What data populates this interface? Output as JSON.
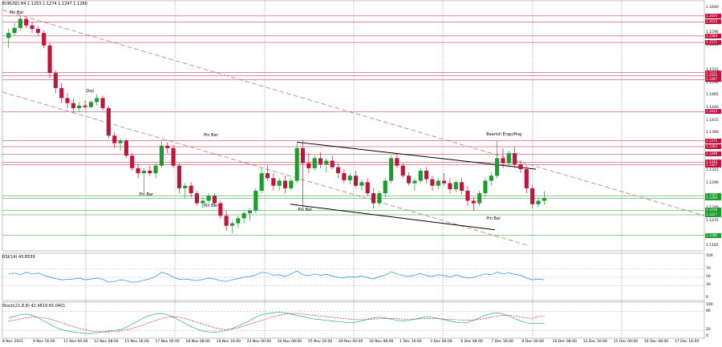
{
  "header": {
    "symbol_info": "EURUSD,H4  1.1253 1.1274 1.1247 1.1260"
  },
  "price_axis": {
    "ticks": [
      "1.1640",
      "1.1590",
      "1.1565",
      "1.1515",
      "1.1490",
      "1.1465",
      "1.1440",
      "1.1415",
      "1.1390",
      "1.1315",
      "1.1290",
      "1.1240",
      "1.1215",
      "1.1165"
    ],
    "tick_values": [
      1.164,
      1.159,
      1.1565,
      1.1515,
      1.149,
      1.1465,
      1.144,
      1.1415,
      1.139,
      1.1315,
      1.129,
      1.124,
      1.1215,
      1.1165
    ],
    "ymin": 1.1155,
    "ymax": 1.1643
  },
  "levels": [
    {
      "value": 1.1624,
      "label": "1.1624",
      "color": "red"
    },
    {
      "value": 1.1612,
      "label": "1.1612",
      "color": "red"
    },
    {
      "value": 1.1584,
      "label": "1.1584",
      "color": "red"
    },
    {
      "value": 1.1571,
      "label": "1.1571",
      "color": "red"
    },
    {
      "value": 1.1511,
      "label": "1.1511",
      "color": "red"
    },
    {
      "value": 1.1505,
      "label": "1.1505",
      "color": "red"
    },
    {
      "value": 1.1497,
      "label": "1.1497",
      "color": "red"
    },
    {
      "value": 1.1433,
      "label": "1.1433",
      "color": "red"
    },
    {
      "value": 1.1375,
      "label": "1.1375",
      "color": "red"
    },
    {
      "value": 1.1363,
      "label": "1.1363",
      "color": "red"
    },
    {
      "value": 1.1348,
      "label": "1.1348",
      "color": "red"
    },
    {
      "value": 1.1332,
      "label": "1.1332",
      "color": "red"
    },
    {
      "value": 1.1327,
      "label": "1.1327",
      "color": "red"
    },
    {
      "value": 1.1265,
      "label": "1.1265",
      "color": "green"
    },
    {
      "value": 1.126,
      "label": "1.1260",
      "color": "green"
    },
    {
      "value": 1.1236,
      "label": "1.1236",
      "color": "green"
    },
    {
      "value": 1.1227,
      "label": "1.1227",
      "color": "green"
    },
    {
      "value": 1.1186,
      "label": "1.1186",
      "color": "green"
    }
  ],
  "chart_data": {
    "type": "candlestick",
    "title": "EURUSD,H4",
    "candles": [
      [
        1.158,
        1.1598,
        1.156,
        1.159
      ],
      [
        1.159,
        1.161,
        1.1585,
        1.16
      ],
      [
        1.16,
        1.1625,
        1.1595,
        1.1618
      ],
      [
        1.1618,
        1.1622,
        1.16,
        1.1605
      ],
      [
        1.1605,
        1.1612,
        1.159,
        1.1598
      ],
      [
        1.1598,
        1.1604,
        1.1585,
        1.159
      ],
      [
        1.159,
        1.1595,
        1.156,
        1.1565
      ],
      [
        1.1565,
        1.157,
        1.15,
        1.151
      ],
      [
        1.151,
        1.1515,
        1.147,
        1.148
      ],
      [
        1.148,
        1.149,
        1.145,
        1.146
      ],
      [
        1.146,
        1.147,
        1.144,
        1.145
      ],
      [
        1.145,
        1.1458,
        1.143,
        1.144
      ],
      [
        1.144,
        1.1452,
        1.1432,
        1.1445
      ],
      [
        1.1445,
        1.1455,
        1.1438,
        1.1442
      ],
      [
        1.1442,
        1.1456,
        1.144,
        1.1452
      ],
      [
        1.1452,
        1.1468,
        1.1445,
        1.146
      ],
      [
        1.146,
        1.1465,
        1.1435,
        1.144
      ],
      [
        1.144,
        1.1444,
        1.138,
        1.1385
      ],
      [
        1.1385,
        1.1392,
        1.136,
        1.137
      ],
      [
        1.137,
        1.138,
        1.1355,
        1.1375
      ],
      [
        1.1375,
        1.1378,
        1.134,
        1.1345
      ],
      [
        1.1345,
        1.135,
        1.1315,
        1.132
      ],
      [
        1.132,
        1.133,
        1.13,
        1.131
      ],
      [
        1.131,
        1.132,
        1.127,
        1.1315
      ],
      [
        1.1315,
        1.1325,
        1.1305,
        1.131
      ],
      [
        1.131,
        1.133,
        1.13,
        1.1325
      ],
      [
        1.1325,
        1.1375,
        1.132,
        1.1365
      ],
      [
        1.1365,
        1.1372,
        1.135,
        1.136
      ],
      [
        1.136,
        1.1366,
        1.132,
        1.1325
      ],
      [
        1.1325,
        1.133,
        1.127,
        1.128
      ],
      [
        1.128,
        1.129,
        1.126,
        1.1285
      ],
      [
        1.1285,
        1.1292,
        1.1262,
        1.127
      ],
      [
        1.127,
        1.1275,
        1.1245,
        1.125
      ],
      [
        1.125,
        1.1262,
        1.124,
        1.1255
      ],
      [
        1.1255,
        1.127,
        1.125,
        1.1265
      ],
      [
        1.1265,
        1.127,
        1.1245,
        1.125
      ],
      [
        1.125,
        1.1255,
        1.122,
        1.1225
      ],
      [
        1.1225,
        1.1235,
        1.1195,
        1.1205
      ],
      [
        1.1205,
        1.1215,
        1.119,
        1.121
      ],
      [
        1.121,
        1.1225,
        1.12,
        1.122
      ],
      [
        1.122,
        1.1235,
        1.121,
        1.123
      ],
      [
        1.123,
        1.124,
        1.1215,
        1.1235
      ],
      [
        1.1235,
        1.128,
        1.123,
        1.1275
      ],
      [
        1.1275,
        1.132,
        1.127,
        1.131
      ],
      [
        1.131,
        1.1325,
        1.1295,
        1.13
      ],
      [
        1.13,
        1.131,
        1.1275,
        1.1285
      ],
      [
        1.1285,
        1.13,
        1.1275,
        1.1295
      ],
      [
        1.1295,
        1.1305,
        1.127,
        1.128
      ],
      [
        1.128,
        1.13,
        1.1275,
        1.1295
      ],
      [
        1.1295,
        1.137,
        1.129,
        1.136
      ],
      [
        1.136,
        1.1375,
        1.124,
        1.133
      ],
      [
        1.133,
        1.135,
        1.131,
        1.132
      ],
      [
        1.132,
        1.1345,
        1.1315,
        1.134
      ],
      [
        1.134,
        1.1352,
        1.132,
        1.1328
      ],
      [
        1.1328,
        1.134,
        1.1312,
        1.1335
      ],
      [
        1.1335,
        1.1345,
        1.1318,
        1.1322
      ],
      [
        1.1322,
        1.133,
        1.13,
        1.131
      ],
      [
        1.131,
        1.1318,
        1.129,
        1.1296
      ],
      [
        1.1296,
        1.131,
        1.1288,
        1.1305
      ],
      [
        1.1305,
        1.1315,
        1.128,
        1.1285
      ],
      [
        1.1285,
        1.1298,
        1.1275,
        1.1292
      ],
      [
        1.1292,
        1.13,
        1.1265,
        1.127
      ],
      [
        1.127,
        1.128,
        1.124,
        1.125
      ],
      [
        1.125,
        1.1275,
        1.1245,
        1.127
      ],
      [
        1.127,
        1.13,
        1.1262,
        1.1295
      ],
      [
        1.1295,
        1.1345,
        1.129,
        1.134
      ],
      [
        1.134,
        1.1348,
        1.132,
        1.1325
      ],
      [
        1.1325,
        1.133,
        1.13,
        1.1305
      ],
      [
        1.1305,
        1.1312,
        1.1285,
        1.129
      ],
      [
        1.129,
        1.13,
        1.1275,
        1.1295
      ],
      [
        1.1295,
        1.132,
        1.129,
        1.1315
      ],
      [
        1.1315,
        1.1322,
        1.129,
        1.1298
      ],
      [
        1.1298,
        1.1305,
        1.1275,
        1.1285
      ],
      [
        1.1285,
        1.13,
        1.1278,
        1.1295
      ],
      [
        1.1295,
        1.131,
        1.1285,
        1.129
      ],
      [
        1.129,
        1.13,
        1.127,
        1.1278
      ],
      [
        1.1278,
        1.1296,
        1.1272,
        1.1292
      ],
      [
        1.1292,
        1.13,
        1.1268,
        1.1275
      ],
      [
        1.1275,
        1.1285,
        1.1245,
        1.1255
      ],
      [
        1.1255,
        1.1262,
        1.1235,
        1.125
      ],
      [
        1.125,
        1.1275,
        1.1245,
        1.127
      ],
      [
        1.127,
        1.13,
        1.1262,
        1.1295
      ],
      [
        1.1295,
        1.1312,
        1.1285,
        1.1305
      ],
      [
        1.1305,
        1.1375,
        1.13,
        1.134
      ],
      [
        1.134,
        1.136,
        1.132,
        1.133
      ],
      [
        1.133,
        1.1355,
        1.1322,
        1.135
      ],
      [
        1.135,
        1.1362,
        1.132,
        1.1328
      ],
      [
        1.1328,
        1.1336,
        1.131,
        1.1318
      ],
      [
        1.1318,
        1.1325,
        1.127,
        1.128
      ],
      [
        1.128,
        1.1285,
        1.124,
        1.1248
      ],
      [
        1.1248,
        1.1262,
        1.1242,
        1.1255
      ],
      [
        1.1255,
        1.1274,
        1.1247,
        1.126
      ]
    ],
    "ylim": [
      1.1155,
      1.1643
    ],
    "x_date_labels": [
      "8 Nov 2021",
      "9 Nov 16:00",
      "11 Nov 00:00",
      "12 Nov 08:00",
      "15 Nov 16:00",
      "17 Nov 00:00",
      "18 Nov 08:00",
      "19 Nov 16:00",
      "23 Nov 00:00",
      "24 Nov 08:00",
      "25 Nov 16:00",
      "29 Nov 00:00",
      "30 Nov 08:00",
      "1 Dec 16:00",
      "3 Dec 00:00",
      "6 Dec 08:00",
      "7 Dec 16:00",
      "9 Dec 00:00",
      "10 Dec 08:00",
      "13 Dec 16:00",
      "15 Dec 00:00",
      "16 Dec 08:00",
      "17 Dec 16:00"
    ],
    "annotations": [
      {
        "text": "Pin Bar",
        "x": 1,
        "y": 1.1625
      },
      {
        "text": "Doji",
        "x": 14,
        "y": 1.1468
      },
      {
        "text": "Pin Bar",
        "x": 23,
        "y": 1.1262
      },
      {
        "text": "Pin Bar",
        "x": 34,
        "y": 1.138
      },
      {
        "text": "Pin Bar",
        "x": 34,
        "y": 1.124
      },
      {
        "text": "Pin Bar",
        "x": 50,
        "y": 1.1232
      },
      {
        "text": "Bearish Engulfing",
        "x": 82,
        "y": 1.1382
      },
      {
        "text": "Pin Bar",
        "x": 82,
        "y": 1.1215
      }
    ]
  },
  "rsi": {
    "label": "RSI(14) 43.8539",
    "levels": [
      "100",
      "70",
      "50",
      "30",
      "0"
    ],
    "values": [
      58,
      60,
      56,
      62,
      58,
      60,
      55,
      50,
      47,
      44,
      45,
      46,
      48,
      44,
      46,
      48,
      45,
      38,
      40,
      44,
      42,
      38,
      39,
      43,
      46,
      52,
      62,
      58,
      50,
      45,
      46,
      44,
      42,
      45,
      48,
      46,
      42,
      40,
      44,
      47,
      50,
      52,
      55,
      62,
      60,
      55,
      56,
      52,
      58,
      65,
      56,
      54,
      58,
      55,
      57,
      53,
      50,
      49,
      52,
      50,
      53,
      49,
      46,
      52,
      55,
      63,
      58,
      54,
      52,
      55,
      59,
      54,
      52,
      56,
      54,
      51,
      55,
      52,
      48,
      50,
      54,
      58,
      56,
      62,
      58,
      61,
      57,
      55,
      48,
      44,
      46,
      44
    ]
  },
  "stoch": {
    "label": "Stoch(21,8,8) 42.4819 65.0401",
    "levels": [
      "100",
      "80",
      "20",
      "0"
    ],
    "main": [
      60,
      65,
      70,
      72,
      68,
      60,
      50,
      40,
      30,
      22,
      18,
      15,
      12,
      10,
      10,
      12,
      15,
      18,
      20,
      22,
      30,
      40,
      50,
      60,
      68,
      72,
      74,
      70,
      62,
      52,
      42,
      32,
      24,
      18,
      15,
      14,
      16,
      20,
      26,
      34,
      42,
      52,
      62,
      70,
      74,
      76,
      78,
      76,
      72,
      68,
      64,
      60,
      56,
      54,
      52,
      50,
      48,
      46,
      44,
      46,
      50,
      56,
      60,
      62,
      60,
      56,
      52,
      50,
      52,
      56,
      60,
      64,
      62,
      58,
      54,
      50,
      46,
      44,
      46,
      52,
      60,
      68,
      74,
      76,
      72,
      66,
      58,
      50,
      44,
      42,
      43,
      42
    ],
    "signal": [
      50,
      52,
      56,
      60,
      62,
      62,
      60,
      56,
      50,
      44,
      38,
      32,
      26,
      22,
      18,
      16,
      15,
      15,
      16,
      18,
      22,
      26,
      32,
      38,
      45,
      52,
      58,
      62,
      64,
      62,
      58,
      52,
      46,
      40,
      34,
      28,
      24,
      22,
      24,
      28,
      34,
      40,
      46,
      52,
      58,
      64,
      68,
      72,
      74,
      74,
      72,
      70,
      68,
      66,
      64,
      62,
      60,
      58,
      56,
      54,
      54,
      54,
      56,
      57,
      58,
      58,
      57,
      56,
      56,
      56,
      57,
      58,
      58,
      57,
      56,
      55,
      54,
      53,
      52,
      53,
      55,
      58,
      62,
      66,
      68,
      68,
      66,
      63,
      60,
      58,
      64,
      65
    ]
  }
}
